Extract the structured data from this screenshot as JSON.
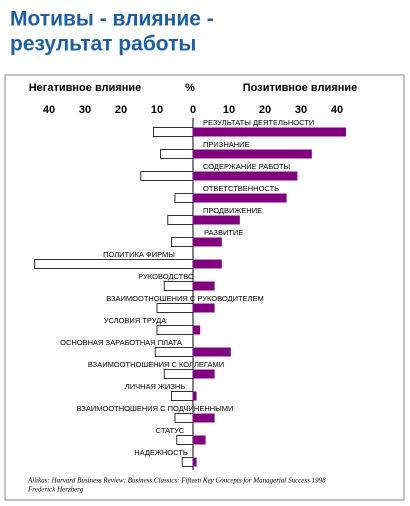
{
  "chart_data": {
    "type": "diverging-bar",
    "title": "Мотивы - влияние -",
    "subtitle": "результат работы",
    "axis_label": "%",
    "categories": [
      "РЕЗУЛЬТАТЫ ДЕЯТЕЛЬНОСТИ",
      "ПРИЗНАНИЕ",
      "СОДЕРЖАНИЕ РАБОТЫ",
      "ОТВЕТСТВЕННОСТЬ",
      "ПРОДВИЖЕНИЕ",
      "РАЗВИТИЕ",
      "ПОЛИТИКА ФИРМЫ",
      "РУКОВОДСТВО",
      "ВЗАИМООТНОШЕНИЯ С РУКОВОДИТЕЛЕМ",
      "УСЛОВИЯ ТРУДА",
      "ОСНОВНАЯ ЗАРАБОТНАЯ ПЛАТА",
      "ВЗАИМООТНОШЕНИЯ С КОЛЛЕГАМИ",
      "ЛИЧНАЯ ЖИЗНЬ",
      "ВЗАИМООТНОШЕНИЯ С ПОДЧИНЕННЫМИ",
      "СТАТУС",
      "НАДЕЖНОСТЬ"
    ],
    "series": [
      {
        "name": "Негативное влияние",
        "color": "#ffffff",
        "values": [
          -11,
          -9,
          -14.5,
          -5,
          -7,
          -6,
          -44,
          -8,
          -10,
          -10,
          -10.5,
          -8,
          -6,
          -5,
          -4.5,
          -3
        ]
      },
      {
        "name": "Позитивное влияние",
        "color": "#800080",
        "values": [
          42.5,
          33,
          29,
          26,
          13,
          8,
          8,
          6,
          6,
          2,
          10.5,
          6,
          1,
          6,
          3.5,
          1
        ]
      }
    ],
    "xlim": [
      -44,
      44
    ],
    "xticks": [
      {
        "value": -40,
        "label": "40"
      },
      {
        "value": -30,
        "label": "30"
      },
      {
        "value": -20,
        "label": "20"
      },
      {
        "value": -10,
        "label": "10"
      },
      0,
      10,
      20,
      30,
      40
    ],
    "source": [
      "Allikas: Harvard Business Review: Business Classics: Fifteen Key Concepts for Managerial Success 1998",
      "Frederick Herzberg"
    ]
  }
}
